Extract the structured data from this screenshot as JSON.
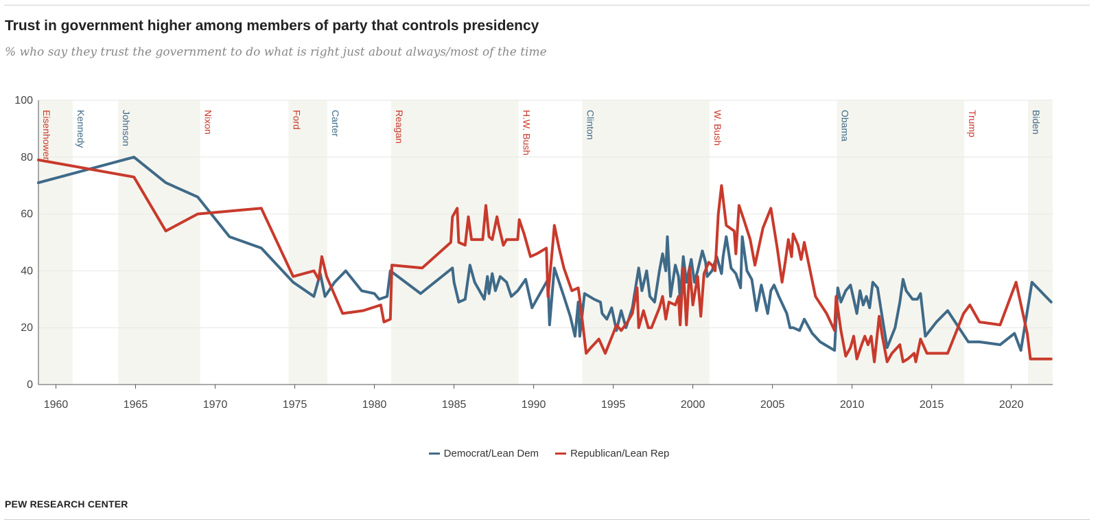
{
  "title": "Trust in government higher among members of party that controls presidency",
  "subtitle": "% who say they trust the government to do what is right just about always/most of the time",
  "source": "PEW RESEARCH CENTER",
  "colors": {
    "dem": "#3f6a88",
    "rep": "#c83a2c",
    "shade": "#f5f5ef",
    "grid": "#e6e6e6",
    "axis": "#555555"
  },
  "chart_data": {
    "type": "line",
    "title": "Trust in government higher among members of party that controls presidency",
    "xlabel": "",
    "ylabel": "",
    "xlim": [
      1958.9,
      2022.6
    ],
    "ylim": [
      0,
      100
    ],
    "x_ticks": [
      1960,
      1965,
      1970,
      1975,
      1980,
      1985,
      1990,
      1995,
      2000,
      2005,
      2010,
      2015,
      2020
    ],
    "y_ticks": [
      0,
      20,
      40,
      60,
      80,
      100
    ],
    "grid": true,
    "legend_position": "bottom-center",
    "presidencies": [
      {
        "name": "Eisenhower",
        "party": "rep",
        "start": 1958.9,
        "end": 1961.05,
        "shaded": true
      },
      {
        "name": "Kennedy",
        "party": "dem",
        "start": 1961.05,
        "end": 1963.9,
        "shaded": false
      },
      {
        "name": "Johnson",
        "party": "dem",
        "start": 1963.9,
        "end": 1969.05,
        "shaded": true
      },
      {
        "name": "Nixon",
        "party": "rep",
        "start": 1969.05,
        "end": 1974.6,
        "shaded": false
      },
      {
        "name": "Ford",
        "party": "rep",
        "start": 1974.6,
        "end": 1977.05,
        "shaded": true
      },
      {
        "name": "Carter",
        "party": "dem",
        "start": 1977.05,
        "end": 1981.05,
        "shaded": false
      },
      {
        "name": "Reagan",
        "party": "rep",
        "start": 1981.05,
        "end": 1989.05,
        "shaded": true
      },
      {
        "name": "H.W. Bush",
        "party": "rep",
        "start": 1989.05,
        "end": 1993.05,
        "shaded": false
      },
      {
        "name": "Clinton",
        "party": "dem",
        "start": 1993.05,
        "end": 2001.05,
        "shaded": true
      },
      {
        "name": "W. Bush",
        "party": "rep",
        "start": 2001.05,
        "end": 2009.05,
        "shaded": false
      },
      {
        "name": "Obama",
        "party": "dem",
        "start": 2009.05,
        "end": 2017.05,
        "shaded": true
      },
      {
        "name": "Trump",
        "party": "rep",
        "start": 2017.05,
        "end": 2021.05,
        "shaded": false
      },
      {
        "name": "Biden",
        "party": "dem",
        "start": 2021.05,
        "end": 2022.6,
        "shaded": true
      }
    ],
    "series": [
      {
        "name": "Democrat/Lean Dem",
        "color": "#3f6a88",
        "points": [
          [
            1958.9,
            71
          ],
          [
            1964.9,
            80
          ],
          [
            1966.9,
            71
          ],
          [
            1968.9,
            66
          ],
          [
            1970.9,
            52
          ],
          [
            1972.9,
            48
          ],
          [
            1974.9,
            36
          ],
          [
            1976.2,
            31
          ],
          [
            1976.6,
            39
          ],
          [
            1976.9,
            31
          ],
          [
            1977.5,
            36
          ],
          [
            1978.2,
            40
          ],
          [
            1979.2,
            33
          ],
          [
            1980.0,
            32
          ],
          [
            1980.3,
            30
          ],
          [
            1980.8,
            31
          ],
          [
            1981.0,
            40
          ],
          [
            1982.9,
            32
          ],
          [
            1984.9,
            41
          ],
          [
            1985.0,
            36
          ],
          [
            1985.3,
            29
          ],
          [
            1985.7,
            30
          ],
          [
            1986.0,
            42
          ],
          [
            1986.3,
            36
          ],
          [
            1986.9,
            30
          ],
          [
            1987.1,
            38
          ],
          [
            1987.2,
            32
          ],
          [
            1987.4,
            39
          ],
          [
            1987.6,
            33
          ],
          [
            1987.9,
            38
          ],
          [
            1988.3,
            36
          ],
          [
            1988.6,
            31
          ],
          [
            1989.0,
            33
          ],
          [
            1989.5,
            37
          ],
          [
            1989.9,
            27
          ],
          [
            1990.4,
            32
          ],
          [
            1990.9,
            37
          ],
          [
            1991.0,
            21
          ],
          [
            1991.3,
            41
          ],
          [
            1991.9,
            31
          ],
          [
            1992.3,
            24
          ],
          [
            1992.6,
            17
          ],
          [
            1992.8,
            29
          ],
          [
            1992.9,
            17
          ],
          [
            1993.2,
            32
          ],
          [
            1993.8,
            30
          ],
          [
            1994.2,
            29
          ],
          [
            1994.3,
            25
          ],
          [
            1994.6,
            23
          ],
          [
            1994.9,
            27
          ],
          [
            1995.2,
            19
          ],
          [
            1995.5,
            26
          ],
          [
            1995.8,
            20
          ],
          [
            1996.2,
            27
          ],
          [
            1996.6,
            41
          ],
          [
            1996.8,
            33
          ],
          [
            1997.1,
            40
          ],
          [
            1997.3,
            31
          ],
          [
            1997.6,
            29
          ],
          [
            1997.9,
            40
          ],
          [
            1998.1,
            46
          ],
          [
            1998.3,
            40
          ],
          [
            1998.4,
            52
          ],
          [
            1998.6,
            31
          ],
          [
            1998.9,
            42
          ],
          [
            1999.1,
            38
          ],
          [
            1999.2,
            30
          ],
          [
            1999.4,
            45
          ],
          [
            1999.6,
            36
          ],
          [
            1999.9,
            44
          ],
          [
            2000.1,
            36
          ],
          [
            2000.3,
            40
          ],
          [
            2000.6,
            47
          ],
          [
            2000.8,
            43
          ],
          [
            2000.9,
            38
          ],
          [
            2001.2,
            40
          ],
          [
            2001.5,
            45
          ],
          [
            2001.8,
            39
          ],
          [
            2001.9,
            45
          ],
          [
            2002.1,
            52
          ],
          [
            2002.4,
            41
          ],
          [
            2002.7,
            39
          ],
          [
            2003.0,
            34
          ],
          [
            2003.1,
            52
          ],
          [
            2003.4,
            40
          ],
          [
            2003.7,
            37
          ],
          [
            2004.0,
            26
          ],
          [
            2004.3,
            35
          ],
          [
            2004.7,
            25
          ],
          [
            2004.9,
            33
          ],
          [
            2005.1,
            35
          ],
          [
            2005.4,
            31
          ],
          [
            2005.9,
            25
          ],
          [
            2006.1,
            20
          ],
          [
            2006.3,
            20
          ],
          [
            2006.7,
            19
          ],
          [
            2007.0,
            23
          ],
          [
            2007.5,
            18
          ],
          [
            2008.0,
            15
          ],
          [
            2008.9,
            12
          ],
          [
            2009.1,
            34
          ],
          [
            2009.3,
            29
          ],
          [
            2009.6,
            33
          ],
          [
            2009.9,
            35
          ],
          [
            2010.1,
            30
          ],
          [
            2010.3,
            25
          ],
          [
            2010.5,
            33
          ],
          [
            2010.7,
            28
          ],
          [
            2010.9,
            31
          ],
          [
            2011.1,
            27
          ],
          [
            2011.3,
            36
          ],
          [
            2011.6,
            34
          ],
          [
            2011.8,
            27
          ],
          [
            2012.2,
            13
          ],
          [
            2012.7,
            20
          ],
          [
            2013.0,
            29
          ],
          [
            2013.2,
            37
          ],
          [
            2013.4,
            33
          ],
          [
            2013.8,
            30
          ],
          [
            2014.1,
            30
          ],
          [
            2014.3,
            32
          ],
          [
            2014.6,
            17
          ],
          [
            2015.3,
            22
          ],
          [
            2016.0,
            26
          ],
          [
            2017.3,
            15
          ],
          [
            2018.0,
            15
          ],
          [
            2019.3,
            14
          ],
          [
            2020.2,
            18
          ],
          [
            2020.6,
            12
          ],
          [
            2021.3,
            36
          ],
          [
            2022.5,
            29
          ]
        ]
      },
      {
        "name": "Republican/Lean Rep",
        "color": "#c83a2c",
        "points": [
          [
            1958.9,
            79
          ],
          [
            1964.9,
            73
          ],
          [
            1966.9,
            54
          ],
          [
            1968.9,
            60
          ],
          [
            1972.9,
            62
          ],
          [
            1974.9,
            38
          ],
          [
            1976.2,
            40
          ],
          [
            1976.5,
            37
          ],
          [
            1976.7,
            45
          ],
          [
            1977.0,
            38
          ],
          [
            1978.0,
            25
          ],
          [
            1979.3,
            26
          ],
          [
            1980.4,
            28
          ],
          [
            1980.6,
            22
          ],
          [
            1981.0,
            23
          ],
          [
            1981.1,
            42
          ],
          [
            1983.0,
            41
          ],
          [
            1984.8,
            50
          ],
          [
            1984.9,
            59
          ],
          [
            1985.2,
            62
          ],
          [
            1985.3,
            50
          ],
          [
            1985.7,
            49
          ],
          [
            1985.9,
            59
          ],
          [
            1986.1,
            51
          ],
          [
            1986.6,
            51
          ],
          [
            1986.8,
            51
          ],
          [
            1987.0,
            63
          ],
          [
            1987.2,
            52
          ],
          [
            1987.4,
            51
          ],
          [
            1987.7,
            59
          ],
          [
            1987.8,
            56
          ],
          [
            1988.1,
            49
          ],
          [
            1988.3,
            51
          ],
          [
            1988.7,
            51
          ],
          [
            1988.8,
            51
          ],
          [
            1989.0,
            51
          ],
          [
            1989.1,
            58
          ],
          [
            1989.4,
            53
          ],
          [
            1989.8,
            45
          ],
          [
            1990.2,
            46
          ],
          [
            1990.8,
            48
          ],
          [
            1990.9,
            31
          ],
          [
            1991.2,
            49
          ],
          [
            1991.3,
            56
          ],
          [
            1991.6,
            48
          ],
          [
            1991.9,
            41
          ],
          [
            1992.4,
            33
          ],
          [
            1992.8,
            34
          ],
          [
            1992.9,
            30
          ],
          [
            1993.3,
            11
          ],
          [
            1993.6,
            13
          ],
          [
            1994.1,
            16
          ],
          [
            1994.5,
            11
          ],
          [
            1995.0,
            18
          ],
          [
            1995.2,
            21
          ],
          [
            1995.5,
            19
          ],
          [
            1995.9,
            22
          ],
          [
            1996.2,
            25
          ],
          [
            1996.5,
            34
          ],
          [
            1996.6,
            20
          ],
          [
            1996.9,
            26
          ],
          [
            1997.2,
            20
          ],
          [
            1997.4,
            20
          ],
          [
            1997.9,
            27
          ],
          [
            1998.1,
            31
          ],
          [
            1998.3,
            23
          ],
          [
            1998.5,
            29
          ],
          [
            1998.9,
            28
          ],
          [
            1999.1,
            31
          ],
          [
            1999.2,
            21
          ],
          [
            1999.4,
            41
          ],
          [
            1999.6,
            21
          ],
          [
            1999.8,
            41
          ],
          [
            2000.0,
            28
          ],
          [
            2000.3,
            38
          ],
          [
            2000.5,
            24
          ],
          [
            2000.7,
            39
          ],
          [
            2001.0,
            43
          ],
          [
            2001.2,
            42
          ],
          [
            2001.4,
            40
          ],
          [
            2001.6,
            60
          ],
          [
            2001.8,
            70
          ],
          [
            2002.1,
            56
          ],
          [
            2002.6,
            54
          ],
          [
            2002.7,
            46
          ],
          [
            2002.9,
            63
          ],
          [
            2003.2,
            58
          ],
          [
            2003.6,
            51
          ],
          [
            2003.9,
            42
          ],
          [
            2004.4,
            55
          ],
          [
            2004.9,
            62
          ],
          [
            2005.3,
            48
          ],
          [
            2005.6,
            36
          ],
          [
            2005.8,
            43
          ],
          [
            2006.0,
            51
          ],
          [
            2006.2,
            45
          ],
          [
            2006.3,
            53
          ],
          [
            2006.6,
            49
          ],
          [
            2006.8,
            44
          ],
          [
            2007.0,
            50
          ],
          [
            2007.7,
            31
          ],
          [
            2008.4,
            25
          ],
          [
            2008.9,
            19
          ],
          [
            2009.0,
            31
          ],
          [
            2009.3,
            19
          ],
          [
            2009.6,
            10
          ],
          [
            2009.9,
            13
          ],
          [
            2010.1,
            17
          ],
          [
            2010.3,
            9
          ],
          [
            2010.6,
            14
          ],
          [
            2010.8,
            17
          ],
          [
            2011.0,
            14
          ],
          [
            2011.2,
            17
          ],
          [
            2011.4,
            8
          ],
          [
            2011.7,
            24
          ],
          [
            2011.9,
            17
          ],
          [
            2012.2,
            8
          ],
          [
            2012.5,
            11
          ],
          [
            2013.0,
            14
          ],
          [
            2013.2,
            8
          ],
          [
            2013.5,
            9
          ],
          [
            2013.9,
            11
          ],
          [
            2014.0,
            8
          ],
          [
            2014.3,
            16
          ],
          [
            2014.7,
            11
          ],
          [
            2015.1,
            11
          ],
          [
            2016.0,
            11
          ],
          [
            2017.0,
            25
          ],
          [
            2017.4,
            28
          ],
          [
            2018.0,
            22
          ],
          [
            2019.3,
            21
          ],
          [
            2020.3,
            36
          ],
          [
            2021.0,
            18
          ],
          [
            2021.2,
            9
          ],
          [
            2022.5,
            9
          ]
        ]
      }
    ]
  }
}
